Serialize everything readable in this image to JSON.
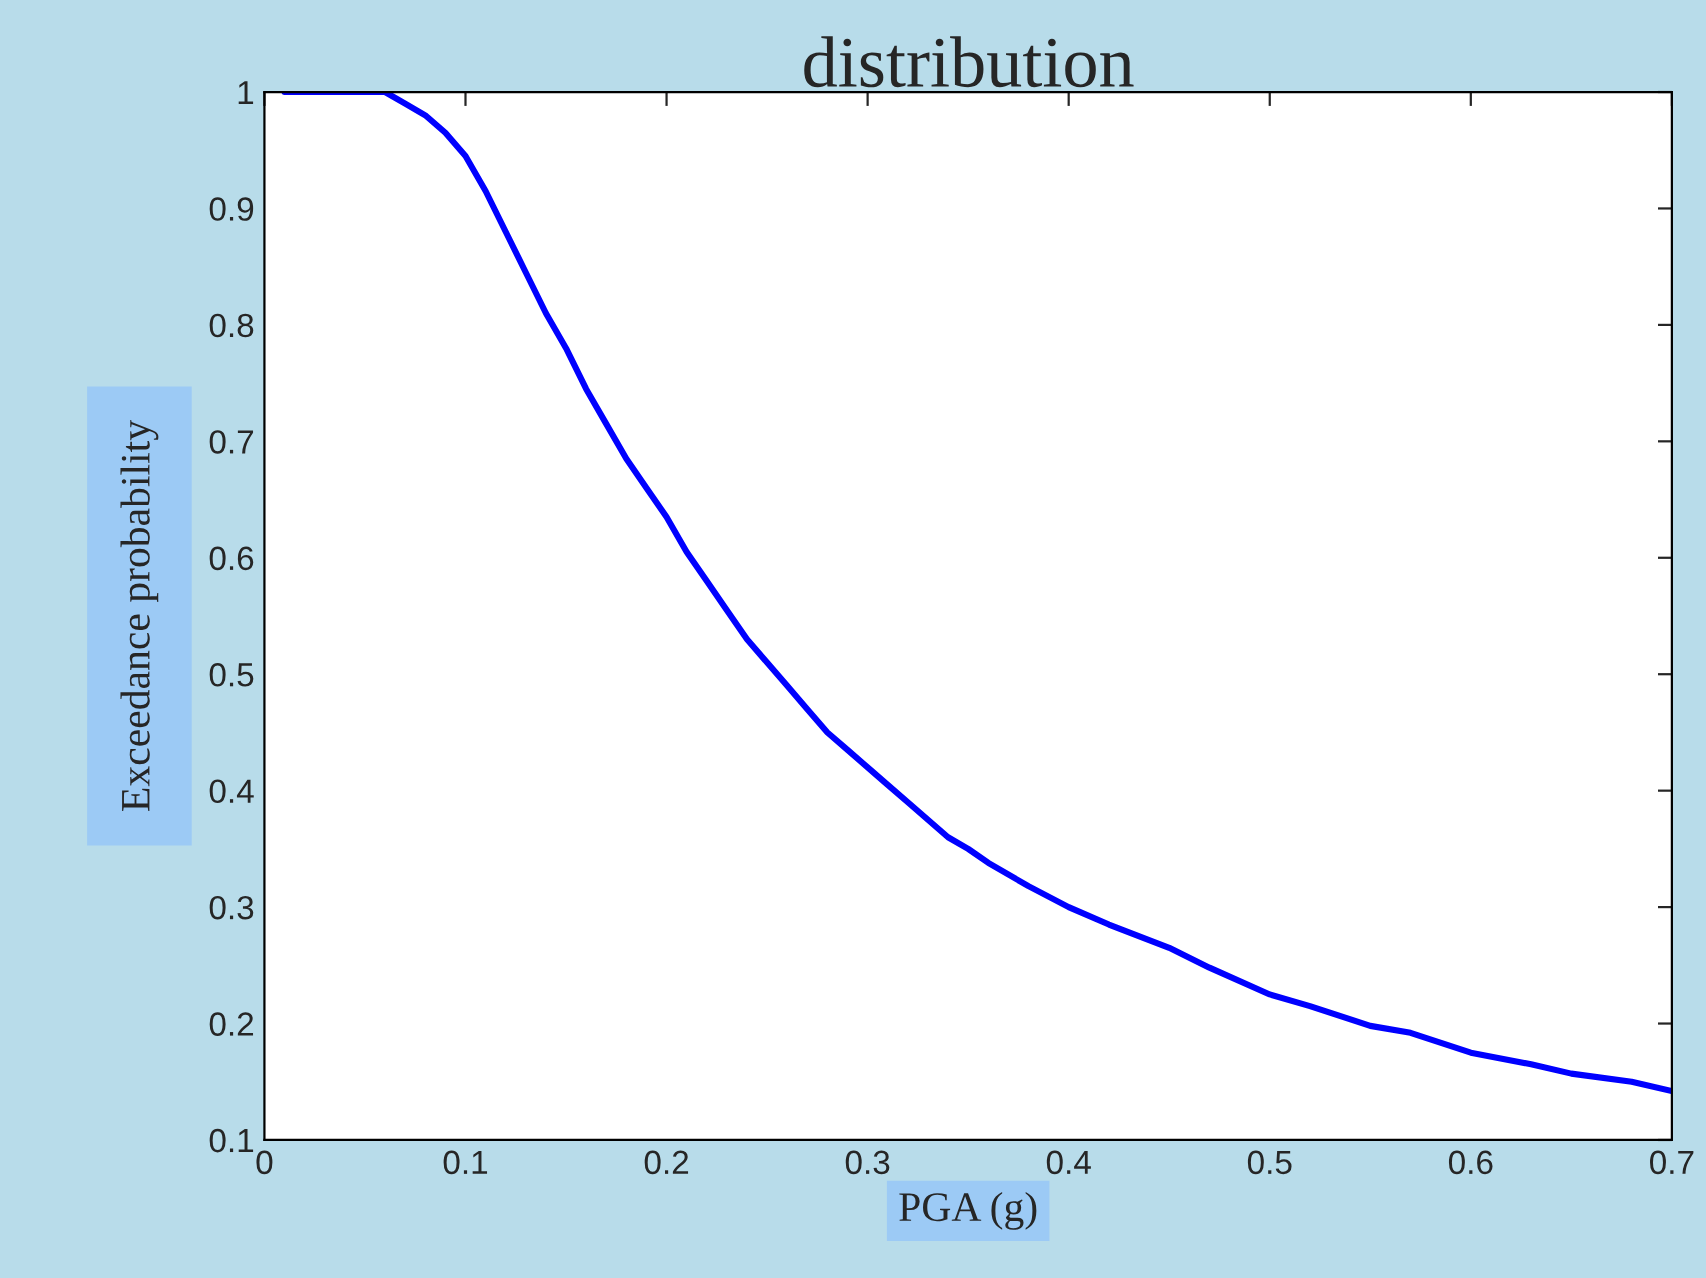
{
  "chart_data": {
    "type": "line",
    "title": "distribution",
    "xlabel": "PGA (g)",
    "ylabel": "Exceedance probability",
    "series": [
      {
        "color": "#0000ff",
        "x": [
          0.01,
          0.02,
          0.03,
          0.04,
          0.05,
          0.06,
          0.07,
          0.08,
          0.09,
          0.1,
          0.11,
          0.12,
          0.13,
          0.14,
          0.15,
          0.16,
          0.17,
          0.18,
          0.19,
          0.2,
          0.21,
          0.22,
          0.23,
          0.24,
          0.25,
          0.26,
          0.27,
          0.28,
          0.29,
          0.3,
          0.31,
          0.32,
          0.33,
          0.34,
          0.35,
          0.36,
          0.38,
          0.4,
          0.42,
          0.45,
          0.47,
          0.5,
          0.52,
          0.55,
          0.57,
          0.6,
          0.63,
          0.65,
          0.68,
          0.7
        ],
        "values": [
          1,
          1,
          1,
          1,
          1,
          1,
          0.99,
          0.98,
          0.965,
          0.945,
          0.915,
          0.88,
          0.845,
          0.81,
          0.78,
          0.745,
          0.715,
          0.685,
          0.66,
          0.635,
          0.605,
          0.58,
          0.555,
          0.53,
          0.51,
          0.49,
          0.47,
          0.45,
          0.435,
          0.42,
          0.405,
          0.39,
          0.375,
          0.36,
          0.35,
          0.338,
          0.318,
          0.3,
          0.285,
          0.265,
          0.248,
          0.225,
          0.215,
          0.198,
          0.192,
          0.175,
          0.165,
          0.157,
          0.15,
          0.142
        ]
      }
    ],
    "xlim": [
      0,
      0.7
    ],
    "ylim": [
      0.1,
      1
    ],
    "xticks": [
      0,
      0.1,
      0.2,
      0.3,
      0.4,
      0.5,
      0.6,
      0.7
    ],
    "yticks": [
      0.1,
      0.2,
      0.3,
      0.4,
      0.5,
      0.6,
      0.7,
      0.8,
      0.9,
      1
    ],
    "grid": false,
    "legend": false,
    "marker": "none",
    "line_style": "solid"
  }
}
